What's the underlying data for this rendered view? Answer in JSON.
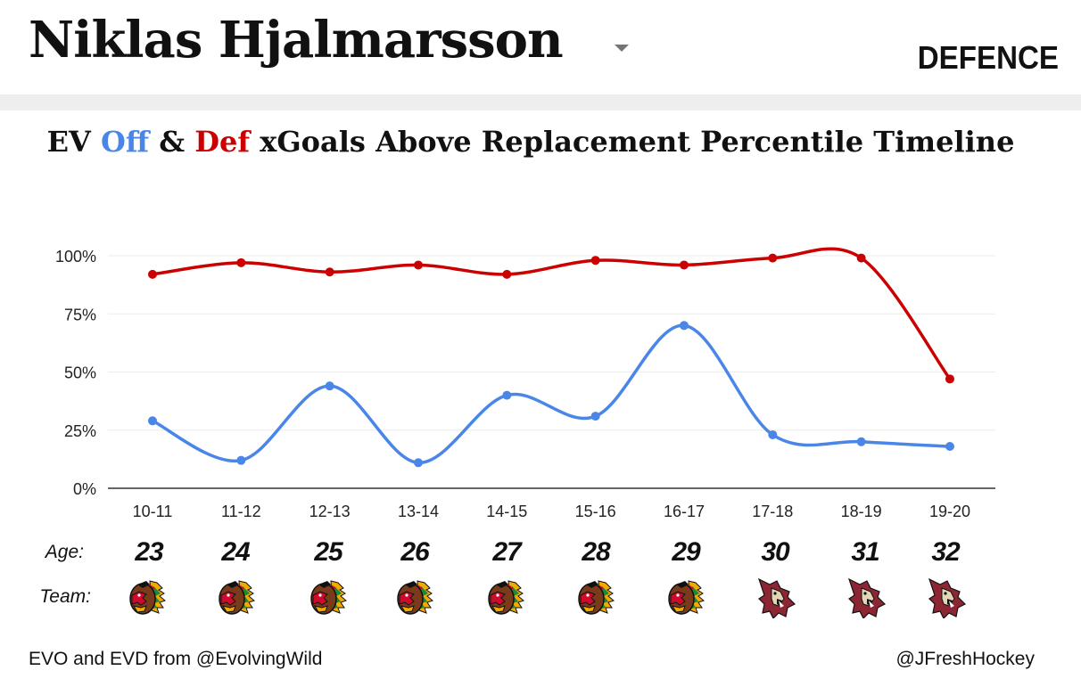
{
  "header": {
    "player_name": "Niklas Hjalmarsson",
    "position": "DEFENCE"
  },
  "title": {
    "prefix": "EV ",
    "off": "Off",
    "amp": " & ",
    "def": "Def",
    "suffix": " xGoals Above Replacement Percentile Timeline"
  },
  "rows": {
    "age_label": "Age:",
    "team_label": "Team:"
  },
  "teams": [
    {
      "season": "10-11",
      "age": "23",
      "team_icon": "blackhawks-logo-icon"
    },
    {
      "season": "11-12",
      "age": "24",
      "team_icon": "blackhawks-logo-icon"
    },
    {
      "season": "12-13",
      "age": "25",
      "team_icon": "blackhawks-logo-icon"
    },
    {
      "season": "13-14",
      "age": "26",
      "team_icon": "blackhawks-logo-icon"
    },
    {
      "season": "14-15",
      "age": "27",
      "team_icon": "blackhawks-logo-icon"
    },
    {
      "season": "15-16",
      "age": "28",
      "team_icon": "blackhawks-logo-icon"
    },
    {
      "season": "16-17",
      "age": "29",
      "team_icon": "blackhawks-logo-icon"
    },
    {
      "season": "17-18",
      "age": "30",
      "team_icon": "coyotes-logo-icon"
    },
    {
      "season": "18-19",
      "age": "31",
      "team_icon": "coyotes-logo-icon"
    },
    {
      "season": "19-20",
      "age": "32",
      "team_icon": "coyotes-logo-icon"
    }
  ],
  "footer": {
    "left": "EVO and EVD from @EvolvingWild",
    "right": "@JFreshHockey"
  },
  "colors": {
    "off": "#4a86e8",
    "def": "#cc0000",
    "grid": "#ebebeb",
    "axis": "#333333"
  },
  "chart_data": {
    "type": "line",
    "title": "EV Off & Def xGoals Above Replacement Percentile Timeline",
    "xlabel": "",
    "ylabel": "",
    "categories": [
      "10-11",
      "11-12",
      "12-13",
      "13-14",
      "14-15",
      "15-16",
      "16-17",
      "17-18",
      "18-19",
      "19-20"
    ],
    "ylim": [
      0,
      100
    ],
    "yticks": [
      "0%",
      "25%",
      "50%",
      "75%",
      "100%"
    ],
    "grid": true,
    "series": [
      {
        "key": "def",
        "values": [
          92,
          97,
          93,
          96,
          92,
          98,
          96,
          99,
          99,
          47
        ]
      },
      {
        "key": "off",
        "values": [
          29,
          12,
          44,
          11,
          40,
          31,
          70,
          23,
          20,
          18
        ]
      }
    ]
  }
}
